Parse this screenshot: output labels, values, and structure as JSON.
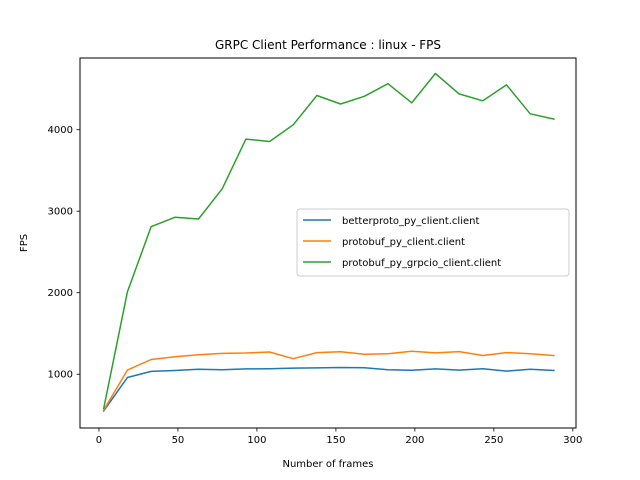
{
  "chart_data": {
    "type": "line",
    "title": "GRPC Client Performance : linux - FPS",
    "xlabel": "Number of frames",
    "ylabel": "FPS",
    "xlim": [
      -12,
      302
    ],
    "ylim": [
      340,
      4880
    ],
    "xticks": [
      0,
      50,
      100,
      150,
      200,
      250,
      300
    ],
    "yticks": [
      1000,
      2000,
      3000,
      4000
    ],
    "grid": false,
    "legend_position": "center-right",
    "x": [
      3,
      18,
      33,
      48,
      63,
      78,
      93,
      108,
      123,
      138,
      153,
      168,
      183,
      198,
      213,
      228,
      243,
      258,
      273,
      288
    ],
    "series": [
      {
        "name": "betterproto_py_client.client",
        "color": "#1f77b4",
        "values": [
          550,
          960,
          1035,
          1045,
          1060,
          1055,
          1065,
          1068,
          1075,
          1078,
          1082,
          1080,
          1055,
          1048,
          1065,
          1050,
          1068,
          1038,
          1060,
          1045
        ]
      },
      {
        "name": "protobuf_py_client.client",
        "color": "#ff7f0e",
        "values": [
          560,
          1050,
          1180,
          1215,
          1240,
          1255,
          1260,
          1272,
          1190,
          1265,
          1275,
          1245,
          1252,
          1282,
          1262,
          1278,
          1230,
          1265,
          1250,
          1228
        ]
      },
      {
        "name": "protobuf_py_grpcio_client.client",
        "color": "#2ca02c",
        "values": [
          580,
          2010,
          2810,
          2925,
          2905,
          3275,
          3885,
          3855,
          4060,
          4420,
          4315,
          4410,
          4565,
          4330,
          4690,
          4440,
          4355,
          4550,
          4195,
          4130
        ]
      }
    ]
  }
}
